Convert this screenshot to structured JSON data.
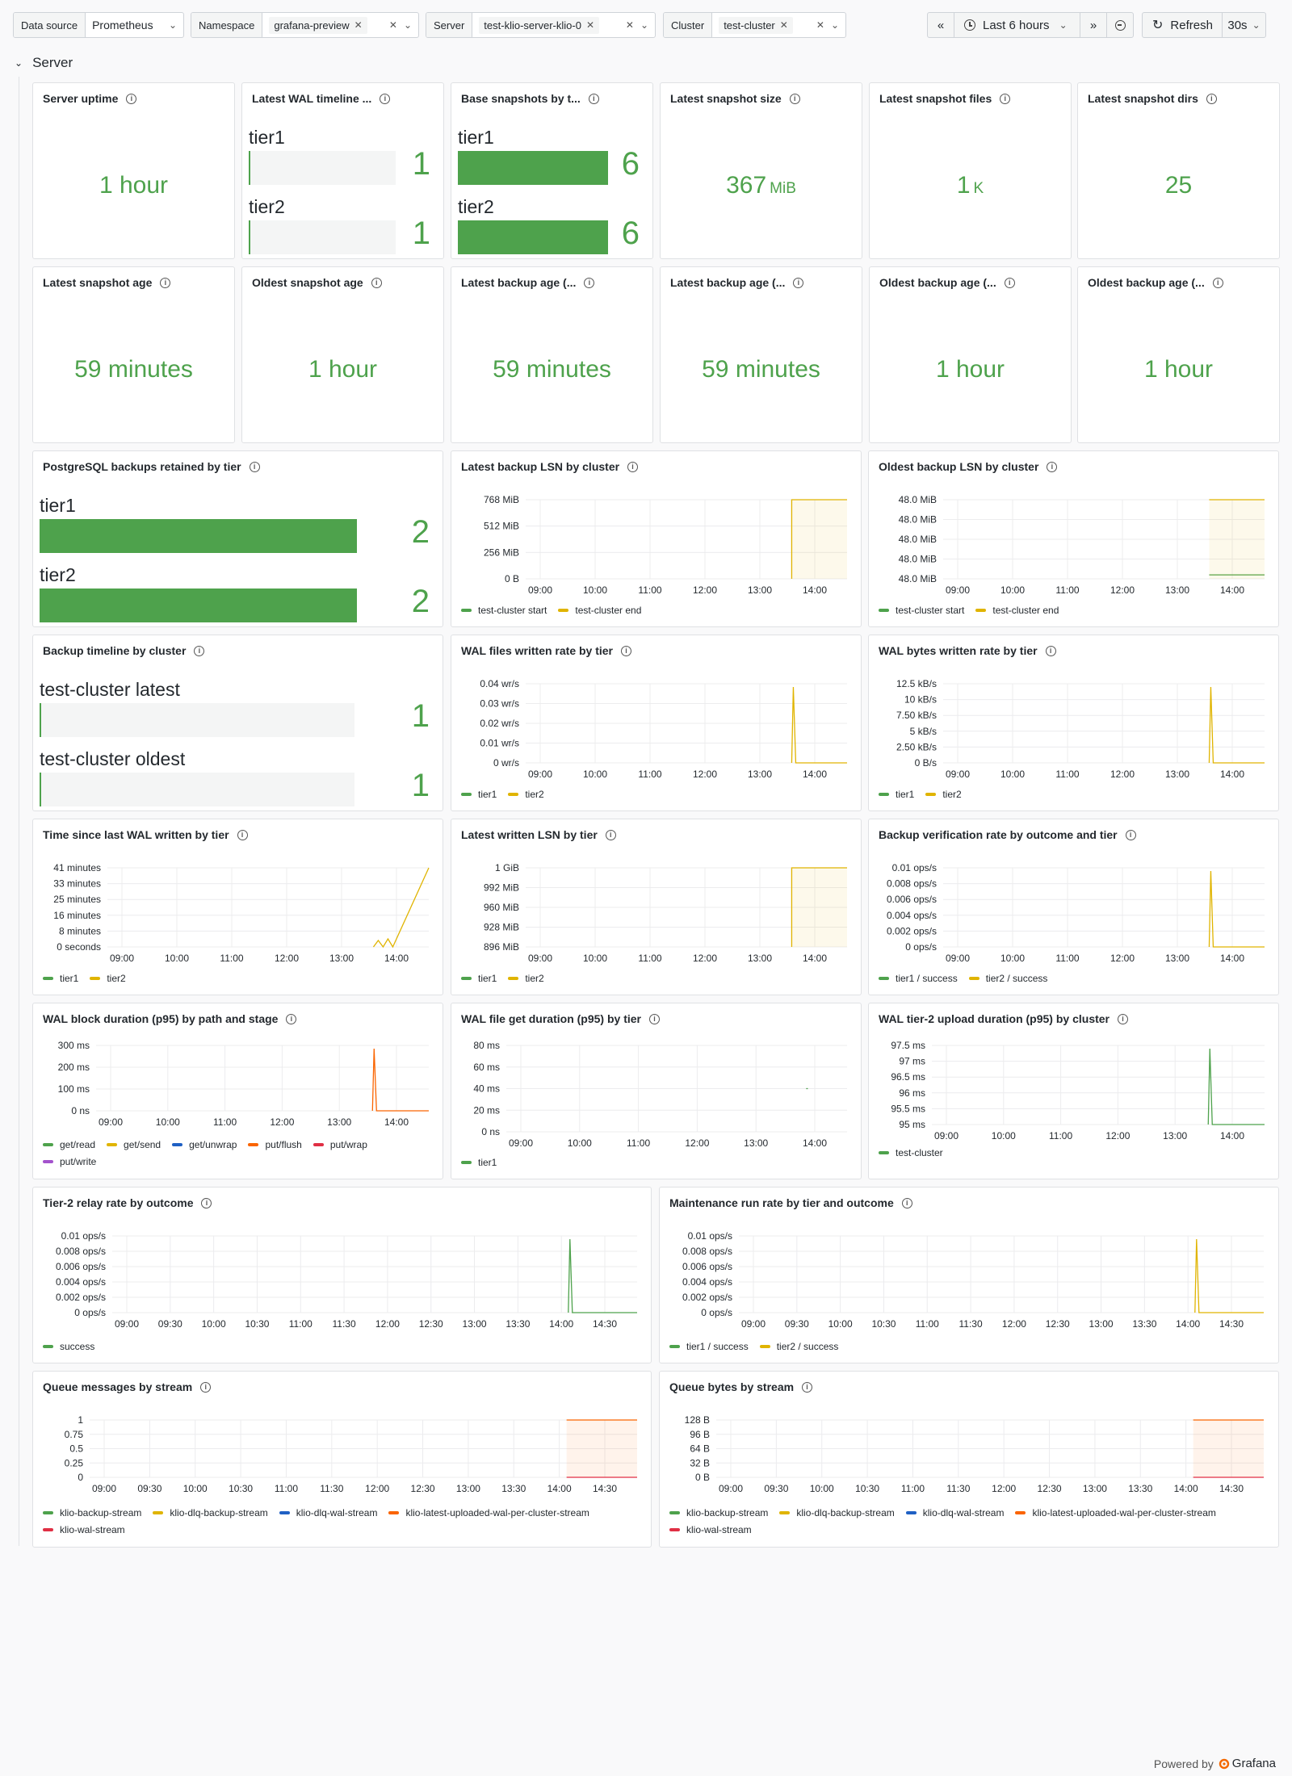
{
  "toolbar": {
    "datasource": {
      "label": "Data source",
      "value": "Prometheus"
    },
    "namespace": {
      "label": "Namespace",
      "value": "grafana-preview"
    },
    "server": {
      "label": "Server",
      "value": "test-klio-server-klio-0"
    },
    "cluster": {
      "label": "Cluster",
      "value": "test-cluster"
    },
    "time_range": "Last 6 hours",
    "refresh_label": "Refresh",
    "refresh_interval": "30s"
  },
  "row_title": "Server",
  "footer": {
    "prefix": "Powered by",
    "brand": "Grafana"
  },
  "colors": {
    "green": "#4ea24c",
    "yellow": "#e0b400",
    "blue": "#1f60c4",
    "orange": "#fa6400",
    "red": "#e02f44",
    "purple": "#a352cc"
  },
  "panels": {
    "server_uptime": {
      "title": "Server uptime",
      "value": "1 hour"
    },
    "wal_timeline": {
      "title": "Latest WAL timeline ...",
      "items": [
        {
          "name": "tier1",
          "value": "1"
        },
        {
          "name": "tier2",
          "value": "1"
        }
      ]
    },
    "base_snapshots": {
      "title": "Base snapshots by t...",
      "items": [
        {
          "name": "tier1",
          "value": "6"
        },
        {
          "name": "tier2",
          "value": "6"
        }
      ]
    },
    "snapshot_size": {
      "title": "Latest snapshot size",
      "value": "367",
      "unit": "MiB"
    },
    "snapshot_files": {
      "title": "Latest snapshot files",
      "value": "1",
      "unit": "K"
    },
    "snapshot_dirs": {
      "title": "Latest snapshot dirs",
      "value": "25"
    },
    "latest_snapshot_age": {
      "title": "Latest snapshot age",
      "value": "59 minutes"
    },
    "oldest_snapshot_age": {
      "title": "Oldest snapshot age",
      "value": "1 hour"
    },
    "latest_backup_age_1": {
      "title": "Latest backup age (...",
      "value": "59 minutes"
    },
    "latest_backup_age_2": {
      "title": "Latest backup age (...",
      "value": "59 minutes"
    },
    "oldest_backup_age_1": {
      "title": "Oldest backup age (...",
      "value": "1 hour"
    },
    "oldest_backup_age_2": {
      "title": "Oldest backup age (...",
      "value": "1 hour"
    },
    "pg_backups_retained": {
      "title": "PostgreSQL backups retained by tier",
      "items": [
        {
          "name": "tier1",
          "value": "2"
        },
        {
          "name": "tier2",
          "value": "2"
        }
      ]
    },
    "backup_timeline": {
      "title": "Backup timeline by cluster",
      "items": [
        {
          "name": "test-cluster latest",
          "value": "1"
        },
        {
          "name": "test-cluster oldest",
          "value": "1"
        }
      ]
    }
  },
  "chart_data": [
    {
      "id": "latest_lsn_cluster",
      "type": "line",
      "title": "Latest backup LSN by cluster",
      "x_ticks": [
        "09:00",
        "10:00",
        "11:00",
        "12:00",
        "13:00",
        "14:00"
      ],
      "y_ticks": [
        "768 MiB",
        "512 MiB",
        "256 MiB",
        "0 B"
      ],
      "legend": [
        {
          "name": "test-cluster start",
          "color": "#4ea24c"
        },
        {
          "name": "test-cluster end",
          "color": "#e0b400"
        }
      ]
    },
    {
      "id": "oldest_lsn_cluster",
      "type": "line",
      "title": "Oldest backup LSN by cluster",
      "x_ticks": [
        "09:00",
        "10:00",
        "11:00",
        "12:00",
        "13:00",
        "14:00"
      ],
      "y_ticks": [
        "48.0 MiB",
        "48.0 MiB",
        "48.0 MiB",
        "48.0 MiB",
        "48.0 MiB"
      ],
      "legend": [
        {
          "name": "test-cluster start",
          "color": "#4ea24c"
        },
        {
          "name": "test-cluster end",
          "color": "#e0b400"
        }
      ]
    },
    {
      "id": "wal_files_rate",
      "type": "line",
      "title": "WAL files written rate by tier",
      "x_ticks": [
        "09:00",
        "10:00",
        "11:00",
        "12:00",
        "13:00",
        "14:00"
      ],
      "y_ticks": [
        "0.04 wr/s",
        "0.03 wr/s",
        "0.02 wr/s",
        "0.01 wr/s",
        "0 wr/s"
      ],
      "legend": [
        {
          "name": "tier1",
          "color": "#4ea24c"
        },
        {
          "name": "tier2",
          "color": "#e0b400"
        }
      ]
    },
    {
      "id": "wal_bytes_rate",
      "type": "line",
      "title": "WAL bytes written rate by tier",
      "x_ticks": [
        "09:00",
        "10:00",
        "11:00",
        "12:00",
        "13:00",
        "14:00"
      ],
      "y_ticks": [
        "12.5 kB/s",
        "10 kB/s",
        "7.50 kB/s",
        "5 kB/s",
        "2.50 kB/s",
        "0 B/s"
      ],
      "legend": [
        {
          "name": "tier1",
          "color": "#4ea24c"
        },
        {
          "name": "tier2",
          "color": "#e0b400"
        }
      ]
    },
    {
      "id": "time_since_wal",
      "type": "line",
      "title": "Time since last WAL written by tier",
      "x_ticks": [
        "09:00",
        "10:00",
        "11:00",
        "12:00",
        "13:00",
        "14:00"
      ],
      "y_ticks": [
        "41 minutes",
        "33 minutes",
        "25 minutes",
        "16 minutes",
        "8 minutes",
        "0 seconds"
      ],
      "legend": [
        {
          "name": "tier1",
          "color": "#4ea24c"
        },
        {
          "name": "tier2",
          "color": "#e0b400"
        }
      ]
    },
    {
      "id": "latest_written_lsn",
      "type": "line",
      "title": "Latest written LSN by tier",
      "x_ticks": [
        "09:00",
        "10:00",
        "11:00",
        "12:00",
        "13:00",
        "14:00"
      ],
      "y_ticks": [
        "1 GiB",
        "992 MiB",
        "960 MiB",
        "928 MiB",
        "896 MiB"
      ],
      "legend": [
        {
          "name": "tier1",
          "color": "#4ea24c"
        },
        {
          "name": "tier2",
          "color": "#e0b400"
        }
      ]
    },
    {
      "id": "backup_verification",
      "type": "line",
      "title": "Backup verification rate by outcome and tier",
      "x_ticks": [
        "09:00",
        "10:00",
        "11:00",
        "12:00",
        "13:00",
        "14:00"
      ],
      "y_ticks": [
        "0.01 ops/s",
        "0.008 ops/s",
        "0.006 ops/s",
        "0.004 ops/s",
        "0.002 ops/s",
        "0 ops/s"
      ],
      "legend": [
        {
          "name": "tier1 / success",
          "color": "#4ea24c"
        },
        {
          "name": "tier2 / success",
          "color": "#e0b400"
        }
      ]
    },
    {
      "id": "wal_block_duration",
      "type": "line",
      "title": "WAL block duration (p95) by path and stage",
      "x_ticks": [
        "09:00",
        "10:00",
        "11:00",
        "12:00",
        "13:00",
        "14:00"
      ],
      "y_ticks": [
        "300 ms",
        "200 ms",
        "100 ms",
        "0 ns"
      ],
      "legend": [
        {
          "name": "get/read",
          "color": "#4ea24c"
        },
        {
          "name": "get/send",
          "color": "#e0b400"
        },
        {
          "name": "get/unwrap",
          "color": "#1f60c4"
        },
        {
          "name": "put/flush",
          "color": "#fa6400"
        },
        {
          "name": "put/wrap",
          "color": "#e02f44"
        },
        {
          "name": "put/write",
          "color": "#a352cc"
        }
      ]
    },
    {
      "id": "wal_file_get",
      "type": "line",
      "title": "WAL file get duration (p95) by tier",
      "x_ticks": [
        "09:00",
        "10:00",
        "11:00",
        "12:00",
        "13:00",
        "14:00"
      ],
      "y_ticks": [
        "80 ms",
        "60 ms",
        "40 ms",
        "20 ms",
        "0 ns"
      ],
      "legend": [
        {
          "name": "tier1",
          "color": "#4ea24c"
        }
      ]
    },
    {
      "id": "wal_tier2_upload",
      "type": "line",
      "title": "WAL tier-2 upload duration (p95) by cluster",
      "x_ticks": [
        "09:00",
        "10:00",
        "11:00",
        "12:00",
        "13:00",
        "14:00"
      ],
      "y_ticks": [
        "97.5 ms",
        "97 ms",
        "96.5 ms",
        "96 ms",
        "95.5 ms",
        "95 ms"
      ],
      "legend": [
        {
          "name": "test-cluster",
          "color": "#4ea24c"
        }
      ]
    },
    {
      "id": "tier2_relay",
      "type": "line",
      "title": "Tier-2 relay rate by outcome",
      "x_ticks": [
        "09:00",
        "09:30",
        "10:00",
        "10:30",
        "11:00",
        "11:30",
        "12:00",
        "12:30",
        "13:00",
        "13:30",
        "14:00",
        "14:30"
      ],
      "y_ticks": [
        "0.01 ops/s",
        "0.008 ops/s",
        "0.006 ops/s",
        "0.004 ops/s",
        "0.002 ops/s",
        "0 ops/s"
      ],
      "legend": [
        {
          "name": "success",
          "color": "#4ea24c"
        }
      ]
    },
    {
      "id": "maintenance_run",
      "type": "line",
      "title": "Maintenance run rate by tier and outcome",
      "x_ticks": [
        "09:00",
        "09:30",
        "10:00",
        "10:30",
        "11:00",
        "11:30",
        "12:00",
        "12:30",
        "13:00",
        "13:30",
        "14:00",
        "14:30"
      ],
      "y_ticks": [
        "0.01 ops/s",
        "0.008 ops/s",
        "0.006 ops/s",
        "0.004 ops/s",
        "0.002 ops/s",
        "0 ops/s"
      ],
      "legend": [
        {
          "name": "tier1 / success",
          "color": "#4ea24c"
        },
        {
          "name": "tier2 / success",
          "color": "#e0b400"
        }
      ]
    },
    {
      "id": "queue_messages",
      "type": "line",
      "title": "Queue messages by stream",
      "x_ticks": [
        "09:00",
        "09:30",
        "10:00",
        "10:30",
        "11:00",
        "11:30",
        "12:00",
        "12:30",
        "13:00",
        "13:30",
        "14:00",
        "14:30"
      ],
      "y_ticks": [
        "1",
        "0.75",
        "0.5",
        "0.25",
        "0"
      ],
      "legend": [
        {
          "name": "klio-backup-stream",
          "color": "#4ea24c"
        },
        {
          "name": "klio-dlq-backup-stream",
          "color": "#e0b400"
        },
        {
          "name": "klio-dlq-wal-stream",
          "color": "#1f60c4"
        },
        {
          "name": "klio-latest-uploaded-wal-per-cluster-stream",
          "color": "#fa6400"
        },
        {
          "name": "klio-wal-stream",
          "color": "#e02f44"
        }
      ]
    },
    {
      "id": "queue_bytes",
      "type": "line",
      "title": "Queue bytes by stream",
      "x_ticks": [
        "09:00",
        "09:30",
        "10:00",
        "10:30",
        "11:00",
        "11:30",
        "12:00",
        "12:30",
        "13:00",
        "13:30",
        "14:00",
        "14:30"
      ],
      "y_ticks": [
        "128 B",
        "96 B",
        "64 B",
        "32 B",
        "0 B"
      ],
      "legend": [
        {
          "name": "klio-backup-stream",
          "color": "#4ea24c"
        },
        {
          "name": "klio-dlq-backup-stream",
          "color": "#e0b400"
        },
        {
          "name": "klio-dlq-wal-stream",
          "color": "#1f60c4"
        },
        {
          "name": "klio-latest-uploaded-wal-per-cluster-stream",
          "color": "#fa6400"
        },
        {
          "name": "klio-wal-stream",
          "color": "#e02f44"
        }
      ]
    }
  ]
}
